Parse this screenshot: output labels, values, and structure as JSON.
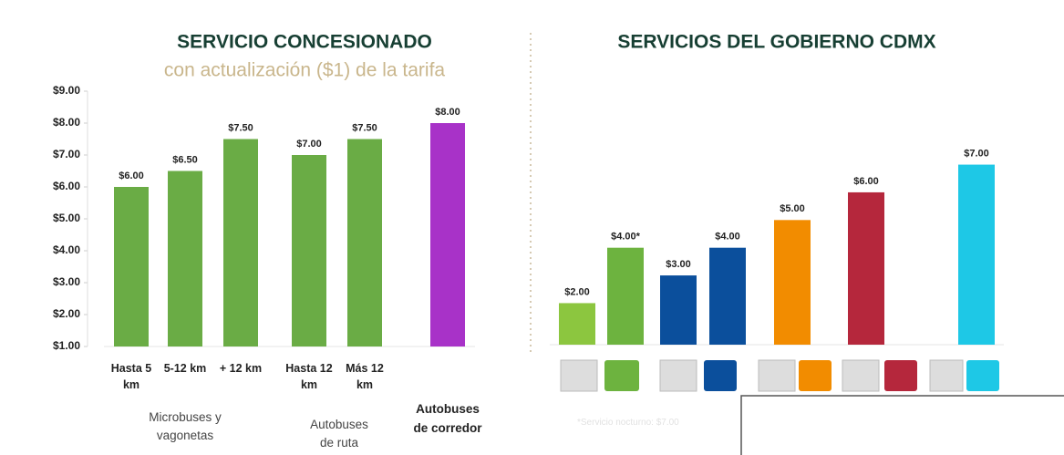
{
  "chart_data": [
    {
      "type": "bar",
      "title": "SERVICIO CONCESIONADO",
      "subtitle": "con actualización ($1) de la tarifa",
      "categories": [
        "Hasta 5 km",
        "5-12 km",
        "+ 12 km",
        "Hasta 12 km",
        "Más 12 km",
        "Autobuses de corredor"
      ],
      "values": [
        6,
        6.5,
        7.5,
        7,
        7.5,
        8
      ],
      "value_labels": [
        "$6.00",
        "$6.50",
        "$7.50",
        "$7.00",
        "$7.50",
        "$8.00"
      ],
      "colors": [
        "#6aac45",
        "#6aac45",
        "#6aac45",
        "#6aac45",
        "#6aac45",
        "#a832c8"
      ],
      "groups": [
        "Microbuses y vagonetas",
        "Autobuses de ruta"
      ],
      "ylim": [
        1,
        9
      ],
      "yticks": [
        {
          "value": 1,
          "label": "$1.00"
        },
        {
          "value": 2,
          "label": "$2.00"
        },
        {
          "value": 3,
          "label": "$3.00"
        },
        {
          "value": 4,
          "label": "$4.00"
        },
        {
          "value": 5,
          "label": "$5.00"
        },
        {
          "value": 6,
          "label": "$6.00"
        },
        {
          "value": 7,
          "label": "$7.00"
        },
        {
          "value": 8,
          "label": "$8.00"
        },
        {
          "value": 9,
          "label": "$9.00"
        }
      ]
    },
    {
      "type": "bar",
      "title": "SERVICIOS DEL GOBIERNO CDMX",
      "values": [
        2,
        4,
        3,
        4,
        5,
        6,
        7
      ],
      "value_labels": [
        "$2.00",
        "$4.00*",
        "$3.00",
        "$4.00",
        "$5.00",
        "$6.00",
        "$7.00"
      ],
      "colors": [
        "#8cc63f",
        "#6db33f",
        "#0b4f9c",
        "#0b4f9c",
        "#f28c00",
        "#b5273c",
        "#1ec8e6"
      ],
      "ylim": [
        0.5,
        8.5
      ],
      "footnote": "*Servicio nocturno: $7.00"
    }
  ]
}
